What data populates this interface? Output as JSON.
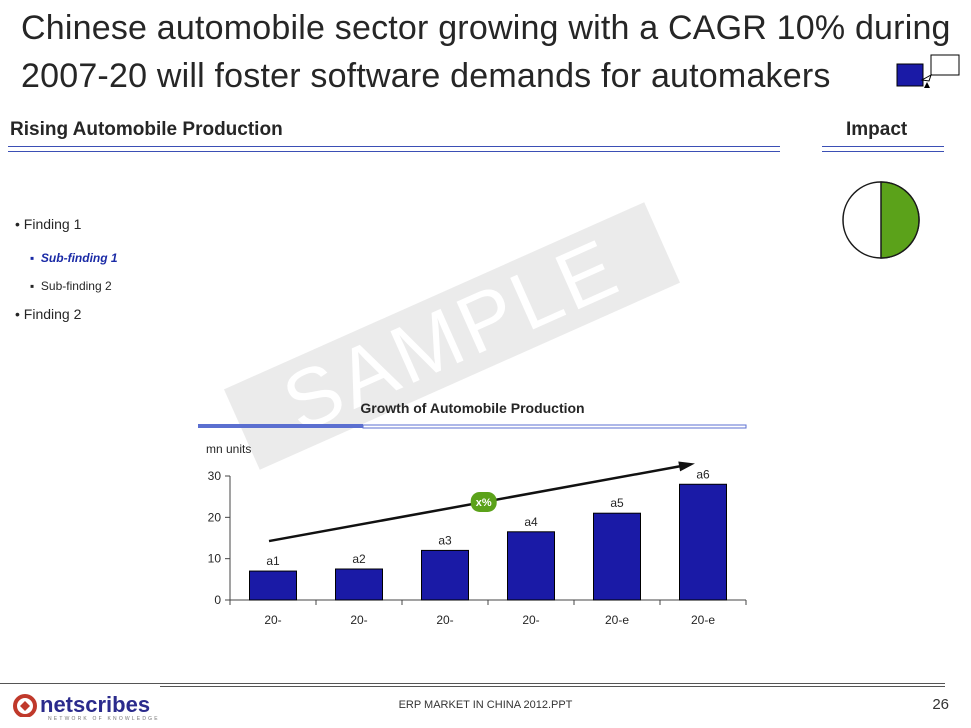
{
  "title": {
    "line1": "Chinese automobile sector growing with a CAGR 10% during",
    "line2": "2007-20 will foster software demands for automakers"
  },
  "section": {
    "left_heading": "Rising Automobile Production",
    "right_heading": "Impact"
  },
  "findings": [
    {
      "label": "Finding 1",
      "subs": [
        "Sub-finding 1",
        "Sub-finding 2"
      ]
    },
    {
      "label": "Finding 2",
      "subs": []
    }
  ],
  "watermark": "SAMPLE",
  "impact": {
    "fill_fraction": 0.5,
    "fill_color": "#5ba21a"
  },
  "chart_data": {
    "type": "bar",
    "title": "Growth of Automobile Production",
    "ylabel": "mn units",
    "xlabel": "",
    "ylim": [
      0,
      30
    ],
    "yticks": [
      0,
      10,
      20,
      30
    ],
    "categories": [
      "20-",
      "20-",
      "20-",
      "20-",
      "20-e",
      "20-e"
    ],
    "values": [
      7,
      7.5,
      12,
      16.5,
      21,
      28
    ],
    "data_labels": [
      "a1",
      "a2",
      "a3",
      "a4",
      "a5",
      "a6"
    ],
    "bar_color": "#1a1aa6",
    "trend_label": "x%",
    "trend_label_color": "#5ba21a"
  },
  "footer": {
    "brand": "netscribes",
    "tagline": "NETWORK OF KNOWLEDGE",
    "doc": "ERP MARKET IN CHINA 2012.PPT",
    "page": "26"
  }
}
